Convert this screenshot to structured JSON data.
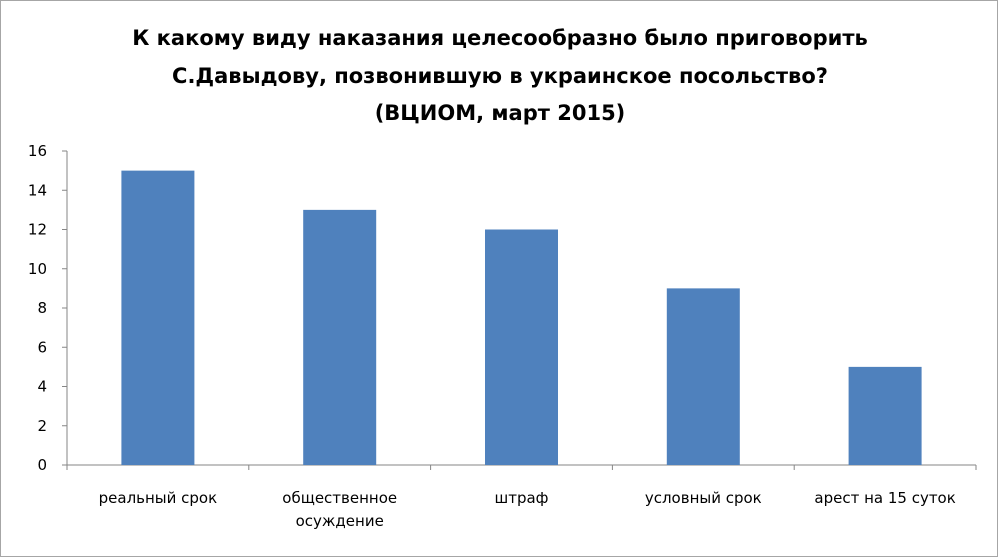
{
  "chart_data": {
    "type": "bar",
    "title_lines": [
      "К какому виду наказания целесообразно было приговорить",
      "С.Давыдову, позвонившую в украинское посольство?",
      "(ВЦИОМ, март 2015)"
    ],
    "categories": [
      [
        "реальный срок"
      ],
      [
        "общественное",
        "осуждение"
      ],
      [
        "штраф"
      ],
      [
        "условный срок"
      ],
      [
        "арест на 15 суток"
      ]
    ],
    "values": [
      15,
      13,
      12,
      9,
      5
    ],
    "ylim": [
      0,
      16
    ],
    "yticks": [
      0,
      2,
      4,
      6,
      8,
      10,
      12,
      14,
      16
    ],
    "bar_color": "#4f81bd",
    "grid": false,
    "legend": "none"
  }
}
